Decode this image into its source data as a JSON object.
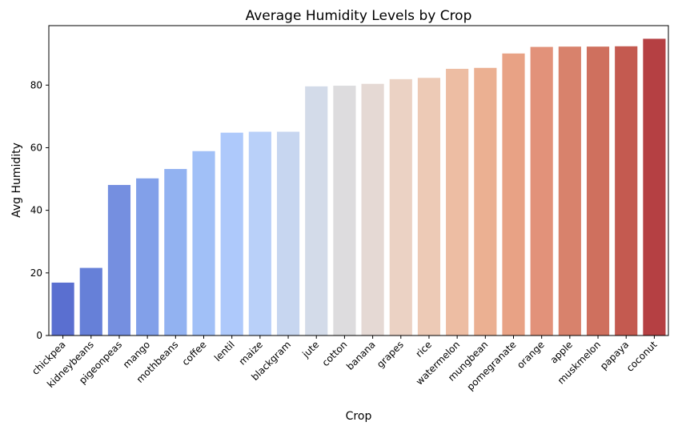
{
  "chart_data": {
    "type": "bar",
    "title": "Average Humidity Levels by Crop",
    "xlabel": "Crop",
    "ylabel": "Avg Humidity",
    "ylim": [
      0,
      99
    ],
    "yticks": [
      0,
      20,
      40,
      60,
      80
    ],
    "grid": false,
    "legend": "none",
    "categories": [
      "chickpea",
      "kidneybeans",
      "pigeonpeas",
      "mango",
      "mothbeans",
      "coffee",
      "lentil",
      "maize",
      "blackgram",
      "jute",
      "cotton",
      "banana",
      "grapes",
      "rice",
      "watermelon",
      "mungbean",
      "pomegranate",
      "orange",
      "apple",
      "muskmelon",
      "papaya",
      "coconut"
    ],
    "values": [
      16.9,
      21.6,
      48.1,
      50.2,
      53.2,
      58.9,
      64.8,
      65.1,
      65.1,
      79.6,
      79.8,
      80.4,
      81.9,
      82.3,
      85.2,
      85.5,
      90.1,
      92.2,
      92.3,
      92.3,
      92.4,
      94.8
    ],
    "colors": [
      "#5a6fd0",
      "#6680d8",
      "#758fe0",
      "#82a0e9",
      "#92b2f1",
      "#a1c0f7",
      "#aec9fb",
      "#b9d0f9",
      "#c7d6f0",
      "#d3dbe9",
      "#dddcde",
      "#e5d9d4",
      "#ebd2c4",
      "#edcab6",
      "#edbda3",
      "#ebb092",
      "#e8a285",
      "#e2927a",
      "#d8826c",
      "#cf705e",
      "#c45a50",
      "#b54043"
    ]
  }
}
